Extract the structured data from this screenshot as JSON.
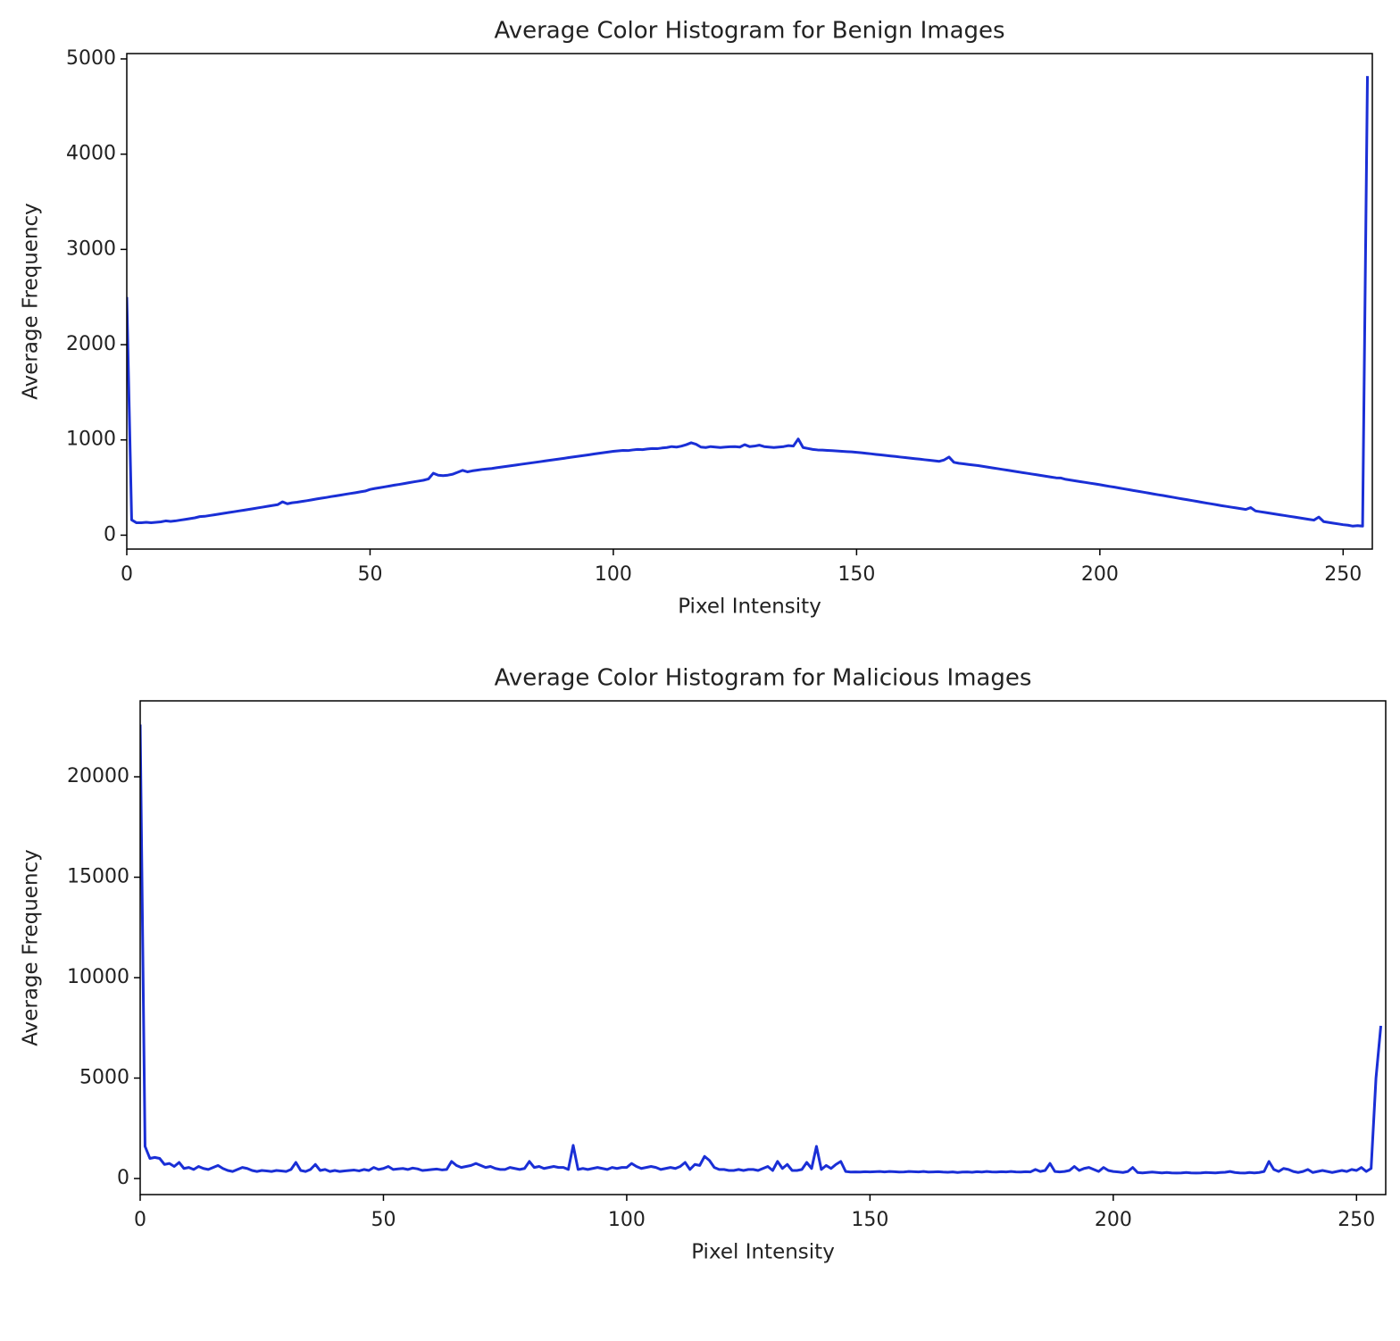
{
  "chart_data": [
    {
      "type": "line",
      "title": "Average Color Histogram for Benign Images",
      "xlabel": "Pixel Intensity",
      "ylabel": "Average Frequency",
      "color": "#1a2fd6",
      "x": [
        0,
        1,
        2,
        3,
        4,
        5,
        6,
        7,
        8,
        9,
        10,
        11,
        12,
        13,
        14,
        15,
        16,
        17,
        18,
        19,
        20,
        21,
        22,
        23,
        24,
        25,
        26,
        27,
        28,
        29,
        30,
        31,
        32,
        33,
        34,
        35,
        36,
        37,
        38,
        39,
        40,
        41,
        42,
        43,
        44,
        45,
        46,
        47,
        48,
        49,
        50,
        51,
        52,
        53,
        54,
        55,
        56,
        57,
        58,
        59,
        60,
        61,
        62,
        63,
        64,
        65,
        66,
        67,
        68,
        69,
        70,
        71,
        72,
        73,
        74,
        75,
        76,
        77,
        78,
        79,
        80,
        81,
        82,
        83,
        84,
        85,
        86,
        87,
        88,
        89,
        90,
        91,
        92,
        93,
        94,
        95,
        96,
        97,
        98,
        99,
        100,
        101,
        102,
        103,
        104,
        105,
        106,
        107,
        108,
        109,
        110,
        111,
        112,
        113,
        114,
        115,
        116,
        117,
        118,
        119,
        120,
        121,
        122,
        123,
        124,
        125,
        126,
        127,
        128,
        129,
        130,
        131,
        132,
        133,
        134,
        135,
        136,
        137,
        138,
        139,
        140,
        141,
        142,
        143,
        144,
        145,
        146,
        147,
        148,
        149,
        150,
        151,
        152,
        153,
        154,
        155,
        156,
        157,
        158,
        159,
        160,
        161,
        162,
        163,
        164,
        165,
        166,
        167,
        168,
        169,
        170,
        171,
        172,
        173,
        174,
        175,
        176,
        177,
        178,
        179,
        180,
        181,
        182,
        183,
        184,
        185,
        186,
        187,
        188,
        189,
        190,
        191,
        192,
        193,
        194,
        195,
        196,
        197,
        198,
        199,
        200,
        201,
        202,
        203,
        204,
        205,
        206,
        207,
        208,
        209,
        210,
        211,
        212,
        213,
        214,
        215,
        216,
        217,
        218,
        219,
        220,
        221,
        222,
        223,
        224,
        225,
        226,
        227,
        228,
        229,
        230,
        231,
        232,
        233,
        234,
        235,
        236,
        237,
        238,
        239,
        240,
        241,
        242,
        243,
        244,
        245,
        246,
        247,
        248,
        249,
        250,
        251,
        252,
        253,
        254,
        255
      ],
      "values": [
        2500,
        160,
        130,
        130,
        135,
        130,
        135,
        140,
        150,
        145,
        150,
        158,
        166,
        174,
        182,
        195,
        198,
        206,
        214,
        222,
        230,
        238,
        246,
        254,
        262,
        270,
        278,
        287,
        295,
        304,
        312,
        320,
        350,
        330,
        340,
        346,
        354,
        362,
        371,
        380,
        388,
        396,
        405,
        413,
        421,
        430,
        438,
        446,
        455,
        463,
        480,
        490,
        498,
        507,
        516,
        525,
        533,
        542,
        551,
        560,
        568,
        577,
        590,
        650,
        630,
        625,
        630,
        640,
        660,
        680,
        665,
        675,
        682,
        690,
        695,
        700,
        708,
        715,
        722,
        729,
        736,
        744,
        751,
        758,
        765,
        772,
        780,
        787,
        794,
        801,
        808,
        816,
        823,
        830,
        837,
        844,
        852,
        859,
        866,
        873,
        880,
        885,
        890,
        888,
        895,
        900,
        898,
        905,
        910,
        908,
        915,
        920,
        930,
        925,
        935,
        950,
        970,
        955,
        925,
        920,
        930,
        925,
        920,
        925,
        928,
        930,
        925,
        950,
        930,
        935,
        945,
        930,
        925,
        920,
        925,
        930,
        940,
        935,
        1010,
        920,
        910,
        900,
        895,
        893,
        890,
        887,
        884,
        880,
        877,
        874,
        870,
        865,
        859,
        854,
        848,
        843,
        837,
        831,
        826,
        820,
        815,
        809,
        803,
        798,
        792,
        787,
        781,
        775,
        790,
        820,
        765,
        755,
        749,
        742,
        736,
        730,
        722,
        714,
        706,
        698,
        690,
        682,
        674,
        666,
        658,
        650,
        642,
        634,
        626,
        618,
        610,
        602,
        600,
        586,
        578,
        570,
        562,
        554,
        546,
        538,
        530,
        521,
        512,
        504,
        495,
        486,
        477,
        468,
        460,
        451,
        442,
        433,
        424,
        416,
        407,
        398,
        389,
        380,
        372,
        363,
        354,
        345,
        336,
        328,
        319,
        310,
        302,
        294,
        286,
        278,
        270,
        290,
        254,
        246,
        238,
        230,
        222,
        214,
        206,
        198,
        190,
        182,
        174,
        166,
        158,
        190,
        142,
        134,
        126,
        118,
        110,
        105,
        95,
        100,
        95,
        4820
      ],
      "xlim": [
        0,
        256
      ],
      "xticks": [
        0,
        50,
        100,
        150,
        200,
        250
      ],
      "ylim": [
        -146,
        5056
      ],
      "yticks": [
        0,
        1000,
        2000,
        3000,
        4000,
        5000
      ]
    },
    {
      "type": "line",
      "title": "Average Color Histogram for Malicious Images",
      "xlabel": "Pixel Intensity",
      "ylabel": "Average Frequency",
      "color": "#1a2fd6",
      "x": [
        0,
        1,
        2,
        3,
        4,
        5,
        6,
        7,
        8,
        9,
        10,
        11,
        12,
        13,
        14,
        15,
        16,
        17,
        18,
        19,
        20,
        21,
        22,
        23,
        24,
        25,
        26,
        27,
        28,
        29,
        30,
        31,
        32,
        33,
        34,
        35,
        36,
        37,
        38,
        39,
        40,
        41,
        42,
        43,
        44,
        45,
        46,
        47,
        48,
        49,
        50,
        51,
        52,
        53,
        54,
        55,
        56,
        57,
        58,
        59,
        60,
        61,
        62,
        63,
        64,
        65,
        66,
        67,
        68,
        69,
        70,
        71,
        72,
        73,
        74,
        75,
        76,
        77,
        78,
        79,
        80,
        81,
        82,
        83,
        84,
        85,
        86,
        87,
        88,
        89,
        90,
        91,
        92,
        93,
        94,
        95,
        96,
        97,
        98,
        99,
        100,
        101,
        102,
        103,
        104,
        105,
        106,
        107,
        108,
        109,
        110,
        111,
        112,
        113,
        114,
        115,
        116,
        117,
        118,
        119,
        120,
        121,
        122,
        123,
        124,
        125,
        126,
        127,
        128,
        129,
        130,
        131,
        132,
        133,
        134,
        135,
        136,
        137,
        138,
        139,
        140,
        141,
        142,
        143,
        144,
        145,
        146,
        147,
        148,
        149,
        150,
        151,
        152,
        153,
        154,
        155,
        156,
        157,
        158,
        159,
        160,
        161,
        162,
        163,
        164,
        165,
        166,
        167,
        168,
        169,
        170,
        171,
        172,
        173,
        174,
        175,
        176,
        177,
        178,
        179,
        180,
        181,
        182,
        183,
        184,
        185,
        186,
        187,
        188,
        189,
        190,
        191,
        192,
        193,
        194,
        195,
        196,
        197,
        198,
        199,
        200,
        201,
        202,
        203,
        204,
        205,
        206,
        207,
        208,
        209,
        210,
        211,
        212,
        213,
        214,
        215,
        216,
        217,
        218,
        219,
        220,
        221,
        222,
        223,
        224,
        225,
        226,
        227,
        228,
        229,
        230,
        231,
        232,
        233,
        234,
        235,
        236,
        237,
        238,
        239,
        240,
        241,
        242,
        243,
        244,
        245,
        246,
        247,
        248,
        249,
        250,
        251,
        252,
        253,
        254,
        255
      ],
      "values": [
        22600,
        1600,
        1000,
        1050,
        1000,
        700,
        750,
        600,
        800,
        500,
        550,
        450,
        600,
        500,
        450,
        550,
        650,
        500,
        400,
        350,
        450,
        550,
        500,
        400,
        350,
        400,
        380,
        350,
        400,
        380,
        350,
        450,
        800,
        400,
        350,
        450,
        700,
        400,
        450,
        350,
        400,
        350,
        380,
        400,
        420,
        380,
        450,
        400,
        550,
        450,
        500,
        600,
        450,
        480,
        500,
        450,
        520,
        480,
        400,
        420,
        450,
        470,
        430,
        450,
        850,
        650,
        550,
        600,
        650,
        750,
        650,
        550,
        600,
        500,
        450,
        450,
        550,
        500,
        450,
        500,
        850,
        550,
        600,
        500,
        550,
        600,
        550,
        550,
        450,
        1650,
        450,
        500,
        450,
        500,
        550,
        500,
        450,
        550,
        500,
        550,
        550,
        750,
        600,
        500,
        550,
        600,
        550,
        450,
        500,
        550,
        500,
        600,
        800,
        450,
        700,
        650,
        1100,
        900,
        550,
        450,
        450,
        400,
        400,
        450,
        400,
        450,
        450,
        400,
        500,
        600,
        400,
        850,
        500,
        700,
        400,
        400,
        450,
        800,
        500,
        1600,
        450,
        650,
        500,
        700,
        850,
        350,
        320,
        330,
        320,
        340,
        330,
        340,
        350,
        330,
        350,
        340,
        320,
        330,
        350,
        340,
        330,
        350,
        320,
        330,
        340,
        320,
        310,
        330,
        300,
        320,
        330,
        310,
        340,
        320,
        350,
        330,
        320,
        340,
        330,
        350,
        330,
        320,
        340,
        330,
        450,
        350,
        400,
        750,
        350,
        330,
        350,
        400,
        600,
        400,
        500,
        550,
        450,
        350,
        550,
        400,
        350,
        330,
        300,
        350,
        550,
        300,
        280,
        300,
        320,
        300,
        280,
        300,
        280,
        270,
        280,
        300,
        280,
        270,
        280,
        300,
        290,
        280,
        300,
        310,
        350,
        300,
        280,
        270,
        300,
        280,
        300,
        350,
        850,
        450,
        350,
        500,
        450,
        350,
        300,
        350,
        450,
        300,
        350,
        400,
        350,
        300,
        350,
        400,
        350,
        450,
        400,
        550,
        350,
        500,
        5000,
        7600
      ],
      "xlim": [
        0,
        256
      ],
      "xticks": [
        0,
        50,
        100,
        150,
        200,
        250
      ],
      "ylim": [
        -800,
        23780
      ],
      "yticks": [
        0,
        5000,
        10000,
        15000,
        20000
      ]
    }
  ]
}
